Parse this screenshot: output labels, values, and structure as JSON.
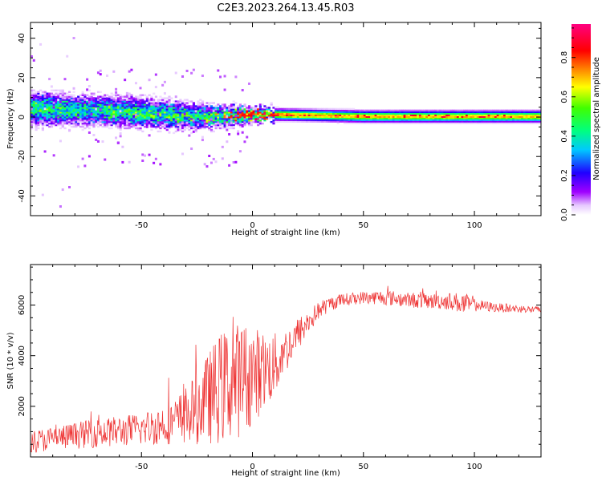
{
  "chart_data": [
    {
      "type": "heatmap",
      "title": "C2E3.2023.264.13.45.R03",
      "xlabel": "Height of straight line (km)",
      "ylabel": "Frequency (Hz)",
      "xlim": [
        -100,
        130
      ],
      "ylim": [
        -50,
        48
      ],
      "xticks": [
        -50,
        0,
        50,
        100
      ],
      "yticks": [
        -40,
        -20,
        0,
        20,
        40
      ],
      "colorbar": {
        "label": "Normalized spectral amplitude",
        "range": [
          0,
          0.97
        ],
        "ticks": [
          0.0,
          0.2,
          0.4,
          0.6,
          0.8
        ],
        "colormap": "rainbow (white-violet-blue-cyan-green-yellow-red-magenta)"
      },
      "ridge": [
        {
          "x": -100,
          "f": 4,
          "width": 7,
          "amp": 0.55
        },
        {
          "x": -75,
          "f": 3,
          "width": 6,
          "amp": 0.5
        },
        {
          "x": -50,
          "f": 2,
          "width": 6,
          "amp": 0.55
        },
        {
          "x": -25,
          "f": 0,
          "width": 5,
          "amp": 0.5
        },
        {
          "x": 0,
          "f": 1,
          "width": 3,
          "amp": 0.85
        },
        {
          "x": 10,
          "f": 1,
          "width": 2.5,
          "amp": 0.8
        },
        {
          "x": 50,
          "f": 0,
          "width": 2.5,
          "amp": 0.75
        },
        {
          "x": 100,
          "f": 0,
          "width": 2.5,
          "amp": 0.75
        },
        {
          "x": 130,
          "f": 0,
          "width": 2.5,
          "amp": 0.75
        }
      ]
    },
    {
      "type": "line",
      "xlabel": "Height of straight line (km)",
      "ylabel": "SNR (10 * v/v)",
      "xlim": [
        -100,
        130
      ],
      "ylim": [
        0,
        7600
      ],
      "xticks": [
        -50,
        0,
        50,
        100
      ],
      "yticks": [
        2000,
        4000,
        6000
      ],
      "color": "#ee3333",
      "envelope": {
        "x": [
          -100,
          -75,
          -50,
          -35,
          -25,
          -15,
          -5,
          5,
          10,
          15,
          20,
          25,
          30,
          35,
          40,
          50,
          60,
          70,
          80,
          90,
          95,
          100,
          110,
          120,
          130
        ],
        "mean": [
          600,
          900,
          1100,
          1400,
          1900,
          2700,
          3100,
          3400,
          3600,
          4200,
          4800,
          5300,
          5800,
          6050,
          6200,
          6300,
          6300,
          6200,
          6150,
          6150,
          6050,
          6000,
          5900,
          5850,
          5800
        ],
        "spread": [
          450,
          550,
          650,
          900,
          1400,
          2200,
          2300,
          1600,
          1300,
          900,
          700,
          500,
          350,
          300,
          250,
          250,
          300,
          300,
          300,
          350,
          450,
          250,
          180,
          160,
          160
        ]
      }
    }
  ]
}
